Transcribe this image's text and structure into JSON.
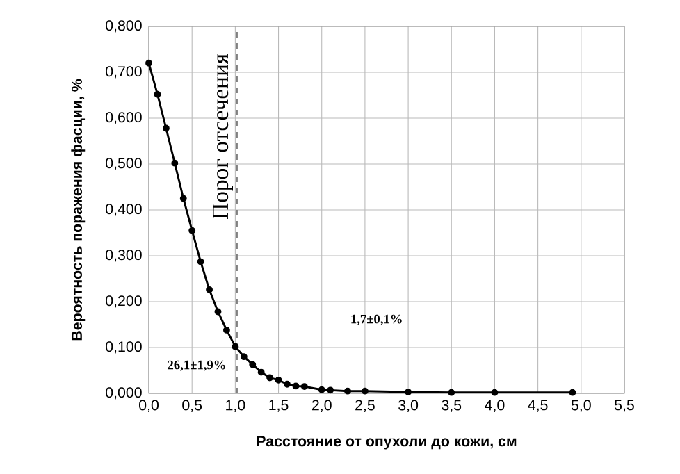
{
  "chart_data": {
    "type": "line",
    "xlabel": "Расстояние от опухоли до кожи, см",
    "ylabel": "Вероятность поражения фасции, %",
    "x": [
      0,
      0.1,
      0.2,
      0.3,
      0.4,
      0.5,
      0.6,
      0.7,
      0.8,
      0.9,
      1.0,
      1.1,
      1.2,
      1.3,
      1.4,
      1.5,
      1.6,
      1.7,
      1.8,
      2.0,
      2.1,
      2.3,
      2.5,
      3.0,
      3.5,
      4.0,
      4.9
    ],
    "series": [
      {
        "color": "#000000",
        "values": [
          0.72,
          0.652,
          0.578,
          0.502,
          0.425,
          0.355,
          0.287,
          0.226,
          0.178,
          0.138,
          0.102,
          0.08,
          0.063,
          0.046,
          0.034,
          0.029,
          0.02,
          0.016,
          0.015,
          0.008,
          0.007,
          0.005,
          0.005,
          0.003,
          0.002,
          0.002,
          0.002
        ]
      }
    ],
    "marker": "circle",
    "line_style": "solid",
    "grid": true,
    "xlim": [
      0,
      5.5
    ],
    "ylim": [
      0,
      0.8
    ],
    "xticks": [
      {
        "value": 0,
        "label": "0,0"
      },
      {
        "value": 0.5,
        "label": "0,5"
      },
      {
        "value": 1,
        "label": "1,0"
      },
      {
        "value": 1.5,
        "label": "1,5"
      },
      {
        "value": 2,
        "label": "2,0"
      },
      {
        "value": 2.5,
        "label": "2,5"
      },
      {
        "value": 3,
        "label": "3,0"
      },
      {
        "value": 3.5,
        "label": "3,5"
      },
      {
        "value": 4,
        "label": "4,0"
      },
      {
        "value": 4.5,
        "label": "4,5"
      },
      {
        "value": 5,
        "label": "5,0"
      },
      {
        "value": 5.5,
        "label": "5,5"
      }
    ],
    "yticks": [
      {
        "value": 0,
        "label": "0,000"
      },
      {
        "value": 0.1,
        "label": "0,100"
      },
      {
        "value": 0.2,
        "label": "0,200"
      },
      {
        "value": 0.3,
        "label": "0,300"
      },
      {
        "value": 0.4,
        "label": "0,400"
      },
      {
        "value": 0.5,
        "label": "0,500"
      },
      {
        "value": 0.6,
        "label": "0,600"
      },
      {
        "value": 0.7,
        "label": "0,700"
      },
      {
        "value": 0.8,
        "label": "0,800"
      }
    ],
    "ref_lines": [
      {
        "axis": "x",
        "value": 1.02,
        "label": "Порог отсечения",
        "color": "#808080",
        "line_style": "dashed"
      }
    ],
    "annotations": [
      "26,1±1,9%",
      "1,7±0,1%"
    ]
  }
}
